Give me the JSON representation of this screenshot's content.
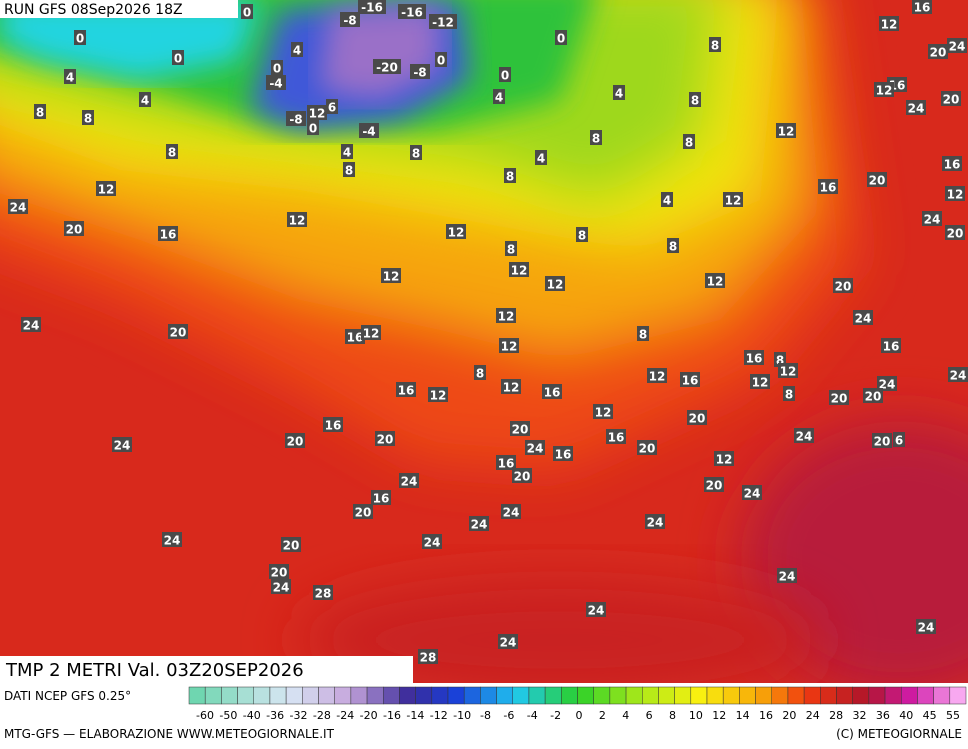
{
  "header": {
    "title": "RUN GFS 08Sep2026 18Z"
  },
  "map": {
    "labels": [
      0,
      -16,
      -16,
      -12,
      -8,
      12,
      16,
      0,
      0,
      4,
      0,
      -4,
      -20,
      -8,
      0,
      0,
      8,
      20,
      24,
      4,
      0,
      4,
      8,
      8,
      6,
      -8,
      12,
      0,
      -4,
      4,
      4,
      8,
      16,
      12,
      24,
      20,
      12,
      8,
      8,
      8,
      4,
      8,
      4,
      8,
      16,
      16,
      20,
      12,
      8,
      12,
      4,
      12,
      24,
      24,
      20,
      12,
      16,
      12,
      8,
      20,
      8,
      8,
      12,
      12,
      12,
      12,
      20,
      24,
      20,
      16,
      12,
      12,
      24,
      8,
      12,
      16,
      16,
      8,
      12,
      8,
      12,
      16,
      12,
      24,
      16,
      12,
      12,
      16,
      24,
      8,
      20,
      20,
      20,
      12,
      16,
      24,
      20,
      20,
      20,
      16,
      24,
      20,
      6,
      24,
      16,
      20,
      12,
      16,
      20,
      24,
      20,
      24,
      16,
      20,
      24,
      24,
      24,
      24,
      20,
      24,
      20,
      24,
      28,
      24,
      24,
      24,
      24,
      28
    ]
  },
  "footer": {
    "field": "TMP 2 METRI Val. 03Z20SEP2026",
    "source": "DATI NCEP GFS 0.25°",
    "credit": "MTG-GFS — ELABORAZIONE WWW.METEOGIORNALE.IT",
    "copyright": "(C) METEOGIORNALE"
  },
  "scale": {
    "labels": [
      -60,
      -50,
      -40,
      -36,
      -32,
      -28,
      -24,
      -20,
      -16,
      -14,
      -12,
      -10,
      -8,
      -6,
      -4,
      -2,
      0,
      2,
      4,
      6,
      8,
      10,
      12,
      14,
      16,
      20,
      24,
      28,
      32,
      36,
      40,
      45,
      55
    ]
  }
}
